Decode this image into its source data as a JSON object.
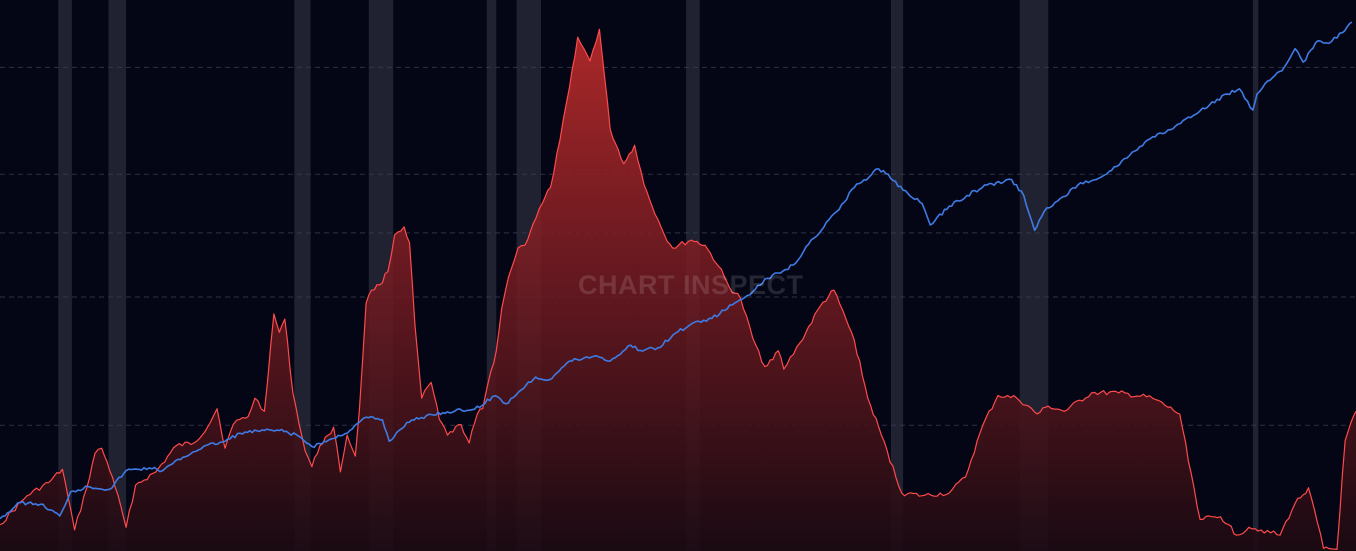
{
  "watermark": "CHART INSPECT",
  "colors": {
    "background": "#040616",
    "grid": "#3a3d4f",
    "recession_band": "#2a2c3c",
    "line_series": "#3f7be4",
    "area_stroke": "#ff4a4a",
    "area_fill_top": "#b52a2a",
    "area_fill_bottom": "#1c0a12"
  },
  "chart_data": {
    "type": "line",
    "title": "",
    "xlabel": "",
    "ylabel": "",
    "grid": true,
    "legend": "none",
    "x_range": [
      0,
      100
    ],
    "gridlines_y_line_scale": [
      90,
      70,
      59,
      47,
      23
    ],
    "recession_bands": [
      {
        "start": 4.3,
        "end": 5.3
      },
      {
        "start": 8.0,
        "end": 9.3
      },
      {
        "start": 21.7,
        "end": 22.9
      },
      {
        "start": 27.2,
        "end": 29.0
      },
      {
        "start": 35.9,
        "end": 36.6
      },
      {
        "start": 38.1,
        "end": 39.9
      },
      {
        "start": 50.6,
        "end": 51.6
      },
      {
        "start": 65.7,
        "end": 66.6
      },
      {
        "start": 75.2,
        "end": 77.3
      },
      {
        "start": 92.4,
        "end": 92.8
      }
    ],
    "series": [
      {
        "kind": "line",
        "y_range": [
          0,
          100
        ],
        "x": [
          0,
          1.5,
          3,
          4.4,
          5.2,
          6.5,
          8.1,
          9.3,
          11,
          12,
          13.5,
          15,
          16.6,
          17.7,
          19.5,
          20.6,
          22,
          23,
          24.6,
          25.8,
          27,
          28.2,
          28.7,
          30,
          31.8,
          33,
          35,
          36.5,
          37.3,
          38.8,
          39.5,
          40.5,
          42,
          44,
          45,
          46.5,
          47.2,
          48.5,
          50,
          51.5,
          52.5,
          54,
          55.5,
          56.6,
          58.5,
          60,
          61.7,
          63,
          64.8,
          65.5,
          66.6,
          68,
          68.6,
          70,
          71.3,
          72.8,
          74,
          74.6,
          75.5,
          76.3,
          77,
          78,
          79.5,
          81.6,
          83.3,
          85,
          86.5,
          88,
          89.2,
          90.5,
          91.4,
          92.4,
          92.7,
          93.5,
          94.7,
          95.5,
          96.1,
          97.2,
          98,
          99,
          99.7
        ],
        "values": [
          5.5,
          8.5,
          8.2,
          6.0,
          10.5,
          11.5,
          11.0,
          14.5,
          15.0,
          14.5,
          17.0,
          19.0,
          20.0,
          21.5,
          22.0,
          22.0,
          21.0,
          19.0,
          20.5,
          22.0,
          24.5,
          24.0,
          20.0,
          23.5,
          25.0,
          25.5,
          26.0,
          28.5,
          27.0,
          30.5,
          32.0,
          31.5,
          35.0,
          36.0,
          35.0,
          38.0,
          37.0,
          37.5,
          40.5,
          42.5,
          43.0,
          45.5,
          48.0,
          50.5,
          53.0,
          58.0,
          63.0,
          67.5,
          71.0,
          70.0,
          67.0,
          64.5,
          60.5,
          64.0,
          66.0,
          68.0,
          68.5,
          69.0,
          66.0,
          59.5,
          63.0,
          65.0,
          68.0,
          70.0,
          73.5,
          77.0,
          78.5,
          81.0,
          83.0,
          85.0,
          86.0,
          82.0,
          85.0,
          87.5,
          90.0,
          93.5,
          91.0,
          95.0,
          94.5,
          96.5,
          98.5
        ]
      },
      {
        "kind": "area",
        "y_range": [
          0,
          100
        ],
        "x": [
          0,
          2,
          3.6,
          4.6,
          5.0,
          5.5,
          6.4,
          7.0,
          7.5,
          8.3,
          9.3,
          10.0,
          11.5,
          13.0,
          14.3,
          15.3,
          16.0,
          16.6,
          17.2,
          17.7,
          18.3,
          18.8,
          19.5,
          20.2,
          20.6,
          21.0,
          21.6,
          22.5,
          23.0,
          23.6,
          24.2,
          24.6,
          25.1,
          25.6,
          26.2,
          26.5,
          27.0,
          27.4,
          28.0,
          28.6,
          29.1,
          29.8,
          30.2,
          30.6,
          31.1,
          31.8,
          32.4,
          33.0,
          34.0,
          34.6,
          35.2,
          35.6,
          36.0,
          36.6,
          37.0,
          37.5,
          37.7,
          38.2,
          38.7,
          39.3,
          40.0,
          40.6,
          41.3,
          42.0,
          42.6,
          43.5,
          44.2,
          45.0,
          46.0,
          46.8,
          47.5,
          48.5,
          49.0,
          49.6,
          51.0,
          52.0,
          53.0,
          53.8,
          54.6,
          55.5,
          56.4,
          57.4,
          57.8,
          59.0,
          60.5,
          61.5,
          63.0,
          64.0,
          65.0,
          66.5,
          68.0,
          70.0,
          71.2,
          72.5,
          73.6,
          75.0,
          76.5,
          77.3,
          78.5,
          80.5,
          82.5,
          85.0,
          87.0,
          88.5,
          90.0,
          90.6,
          91.2,
          92.1,
          93.0,
          94.4,
          95.5,
          96.5,
          97.6,
          98.6,
          99.2,
          100
        ],
        "values": [
          5.0,
          10.5,
          13.0,
          15.5,
          10.5,
          4.0,
          12.0,
          18.5,
          19.5,
          14.0,
          4.5,
          12.5,
          15.0,
          20.0,
          20.5,
          23.5,
          27.0,
          19.5,
          24.0,
          25.0,
          25.5,
          29.0,
          26.5,
          45.0,
          41.5,
          44.0,
          30.0,
          19.0,
          16.0,
          20.0,
          22.0,
          23.5,
          15.0,
          22.0,
          18.0,
          26.5,
          47.0,
          49.5,
          50.5,
          53.0,
          60.0,
          61.5,
          58.5,
          43.0,
          29.0,
          32.0,
          25.0,
          22.0,
          24.0,
          20.5,
          26.0,
          27.0,
          32.0,
          38.0,
          46.0,
          52.0,
          53.5,
          57.5,
          58.0,
          62.0,
          66.0,
          69.0,
          78.0,
          88.0,
          97.5,
          93.0,
          99.0,
          80.0,
          73.5,
          77.0,
          69.5,
          63.0,
          60.0,
          57.5,
          59.0,
          58.0,
          54.0,
          50.0,
          48.0,
          40.5,
          35.0,
          38.0,
          34.5,
          39.5,
          46.5,
          49.5,
          40.0,
          29.0,
          22.0,
          11.0,
          10.5,
          11.0,
          14.0,
          24.0,
          29.5,
          29.0,
          26.0,
          27.5,
          26.5,
          30.0,
          30.0,
          29.0,
          26.0,
          6.0,
          6.5,
          5.0,
          3.0,
          4.5,
          4.0,
          3.0,
          9.0,
          12.0,
          0.5,
          0.3,
          21.0,
          26.5
        ]
      }
    ]
  }
}
